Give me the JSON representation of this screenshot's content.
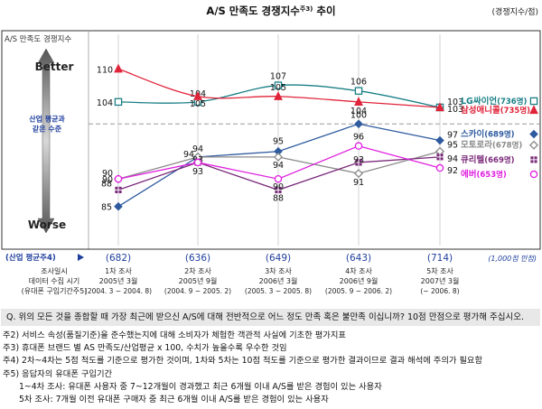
{
  "header": {
    "title": "A/S 만족도 경쟁지수",
    "title_sup": "주3)",
    "title_suffix": " 추이",
    "unit": "(경쟁지수/점)"
  },
  "chart_data": {
    "type": "line",
    "ylabel": "A/S 만족도 경쟁지수",
    "y_top_label": "Better",
    "y_bottom_label": "Worse",
    "reference_line": {
      "label_line1": "산업 평균과",
      "label_line2": "같은 수준",
      "value": 100
    },
    "categories": [
      {
        "line1": "1차 조사",
        "line2": "2005년 3월",
        "line3": "(2004. 3 ~ 2004. 8)"
      },
      {
        "line1": "2차 조사",
        "line2": "2005년 9월",
        "line3": "(2004. 9 ~ 2005. 2)"
      },
      {
        "line1": "3차 조사",
        "line2": "2006년 3월",
        "line3": "(2005. 3 ~ 2005. 8)"
      },
      {
        "line1": "4차 조사",
        "line2": "2006년 9월",
        "line3": "(2005. 9 ~ 2006. 2)"
      },
      {
        "line1": "5차 조사",
        "line2": "2007년 3월",
        "line3": "(~ 2006. 8)"
      }
    ],
    "axis_row_labels": [
      "조사일시",
      "데이터 수집 시기",
      "(유대폰 구입기간주5)"
    ],
    "industry_avg": {
      "label": "(산업 평균주4)",
      "values": [
        "(682)",
        "(636)",
        "(649)",
        "(643)",
        "(714)"
      ],
      "unit": "(1,000점 만점)"
    },
    "series": [
      {
        "name": "LG싸이언",
        "count": "(736명)",
        "color": "#1a7f86",
        "marker": "square-open",
        "values": [
          104,
          104,
          107,
          106,
          103
        ]
      },
      {
        "name": "삼성애니콜",
        "count": "(735명)",
        "color": "#e0243a",
        "marker": "triangle",
        "values": [
          110,
          105,
          105,
          104,
          103
        ]
      },
      {
        "name": "스카이",
        "count": "(689명)",
        "color": "#2e5a9e",
        "marker": "diamond",
        "values": [
          85,
          94,
          95,
          100,
          97
        ]
      },
      {
        "name": "모토로라",
        "count": "(678명)",
        "color": "#8a8a8a",
        "marker": "diamond-open",
        "values": [
          90,
          94,
          94,
          91,
          95
        ]
      },
      {
        "name": "큐리텔",
        "count": "(669명)",
        "color": "#7a2a7a",
        "marker": "square-cross",
        "values": [
          88,
          93,
          88,
          93,
          94
        ]
      },
      {
        "name": "에버",
        "count": "(653명)",
        "color": "#e020e0",
        "marker": "circle-open",
        "values": [
          90,
          93,
          90,
          96,
          92
        ]
      }
    ],
    "ylim": [
      82,
      113
    ]
  },
  "question": "Q.  위의 모든 것을 종합할 때 가장 최근에 받으신 A/S에 대해 전반적으로 어느 정도 만족 혹은 불만족 이십니까? 10점 만점으로 평가해 주십시오.",
  "notes": [
    "주2) 서비스 속성(품질기준)을 준수했는지에 대해 소비자가 체험한 객관적 사실에 기초한 평가지표",
    "주3) 휴대폰 브랜드 별 AS 만족도/산업평균 x 100, 수치가 높을수록 우수한 것임",
    "주4) 2차~4차는 5점 척도를 기준으로 평가한 것이며, 1차와 5차는 10점 척도를 기준으로 평가한 결과이므로 결과 해석에 주의가 필요함",
    "주5) 응답자의 유대폰 구입기간",
    "1~4차 조사: 유대폰 사용자 중 7~12개월이 경과했고 최근 6개월 이내 A/S를 받은 경험이 있는 사용자",
    "5차 조사: 7개월 이전 유대폰 구매자 중 최근 6개월 이내 A/S를 받은 경험이 있는 사용자"
  ]
}
